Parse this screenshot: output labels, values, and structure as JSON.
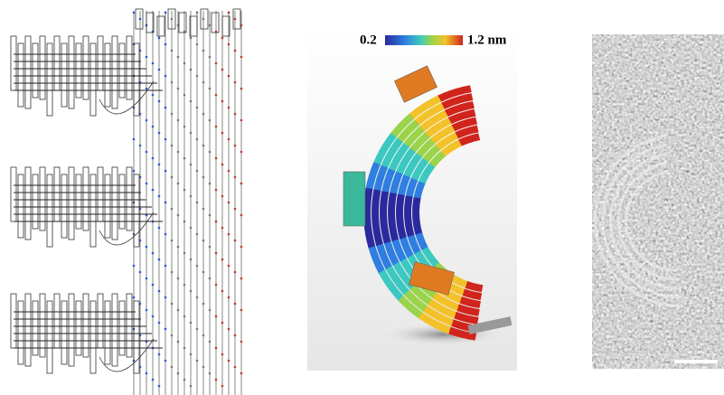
{
  "colorbar": {
    "min_label": "0.2",
    "max_label": "1.2 nm"
  }
}
